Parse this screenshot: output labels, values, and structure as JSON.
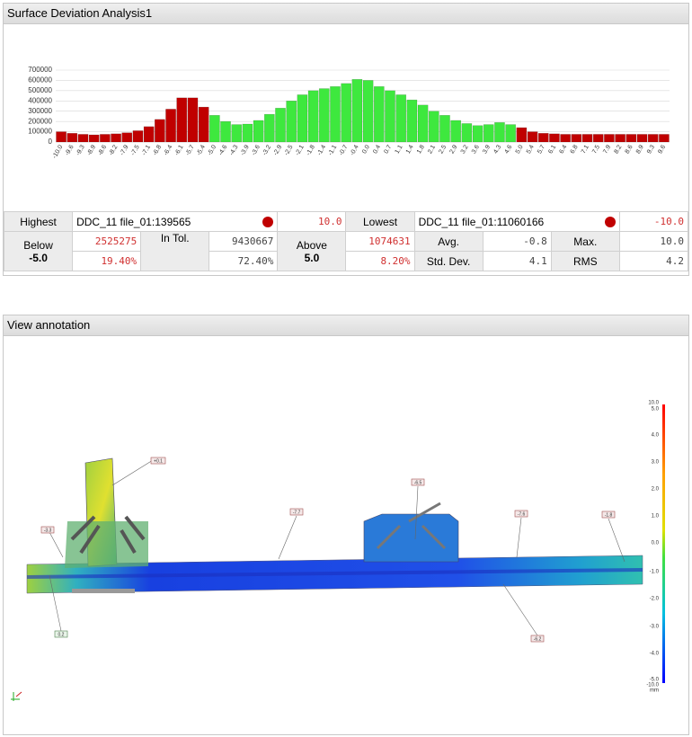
{
  "panel_top": {
    "title": "Surface Deviation Analysis1"
  },
  "panel_bottom": {
    "title": "View annotation"
  },
  "chart_data": {
    "type": "bar",
    "categories": [
      "-10.0",
      "-9.6",
      "-9.3",
      "-8.9",
      "-8.6",
      "-8.2",
      "-7.9",
      "-7.5",
      "-7.1",
      "-6.8",
      "-6.4",
      "-6.1",
      "-5.7",
      "-5.4",
      "-5.0",
      "-4.6",
      "-4.3",
      "-3.9",
      "-3.6",
      "-3.2",
      "-2.9",
      "-2.5",
      "-2.1",
      "-1.8",
      "-1.4",
      "-1.1",
      "-0.7",
      "-0.4",
      "0.0",
      "0.4",
      "0.7",
      "1.1",
      "1.4",
      "1.8",
      "2.1",
      "2.5",
      "2.9",
      "3.2",
      "3.6",
      "3.9",
      "4.3",
      "4.6",
      "5.0",
      "5.4",
      "5.7",
      "6.1",
      "6.4",
      "6.8",
      "7.1",
      "7.5",
      "7.9",
      "8.2",
      "8.6",
      "8.9",
      "9.3",
      "9.6"
    ],
    "values": [
      100000,
      85000,
      75000,
      70000,
      75000,
      80000,
      90000,
      110000,
      150000,
      220000,
      320000,
      430000,
      430000,
      340000,
      260000,
      200000,
      170000,
      175000,
      210000,
      270000,
      330000,
      400000,
      460000,
      500000,
      520000,
      540000,
      570000,
      610000,
      600000,
      540000,
      500000,
      460000,
      410000,
      360000,
      300000,
      260000,
      210000,
      180000,
      160000,
      170000,
      190000,
      170000,
      140000,
      100000,
      85000,
      80000,
      75000,
      75000,
      75000,
      75000,
      75000,
      75000,
      75000,
      75000,
      75000,
      75000
    ],
    "colors": [
      "#c00000",
      "#c00000",
      "#c00000",
      "#c00000",
      "#c00000",
      "#c00000",
      "#c00000",
      "#c00000",
      "#c00000",
      "#c00000",
      "#c00000",
      "#c00000",
      "#c00000",
      "#c00000",
      "#3ee83e",
      "#3ee83e",
      "#3ee83e",
      "#3ee83e",
      "#3ee83e",
      "#3ee83e",
      "#3ee83e",
      "#3ee83e",
      "#3ee83e",
      "#3ee83e",
      "#3ee83e",
      "#3ee83e",
      "#3ee83e",
      "#3ee83e",
      "#3ee83e",
      "#3ee83e",
      "#3ee83e",
      "#3ee83e",
      "#3ee83e",
      "#3ee83e",
      "#3ee83e",
      "#3ee83e",
      "#3ee83e",
      "#3ee83e",
      "#3ee83e",
      "#3ee83e",
      "#3ee83e",
      "#3ee83e",
      "#c00000",
      "#c00000",
      "#c00000",
      "#c00000",
      "#c00000",
      "#c00000",
      "#c00000",
      "#c00000",
      "#c00000",
      "#c00000",
      "#c00000",
      "#c00000",
      "#c00000",
      "#c00000"
    ],
    "ylim": [
      0,
      700000
    ],
    "yticks": [
      0,
      100000,
      200000,
      300000,
      400000,
      500000,
      600000,
      700000
    ],
    "grid": true
  },
  "table": {
    "highest": {
      "label": "Highest",
      "name": "DDC_11 file_01:139565",
      "value": "10.0"
    },
    "lowest": {
      "label": "Lowest",
      "name": "DDC_11 file_01:11060166",
      "value": "-10.0"
    },
    "below": {
      "label": "Below",
      "limit": "-5.0",
      "count": "2525275",
      "percent": "19.40%"
    },
    "in_tol": {
      "label": "In Tol.",
      "count": "9430667",
      "percent": "72.40%"
    },
    "above": {
      "label": "Above",
      "limit": "5.0",
      "count": "1074631",
      "percent": "8.20%"
    },
    "avg": {
      "label": "Avg.",
      "value": "-0.8"
    },
    "max": {
      "label": "Max.",
      "value": "10.0"
    },
    "std": {
      "label": "Std. Dev.",
      "value": "4.1"
    },
    "rms": {
      "label": "RMS",
      "value": "4.2"
    }
  },
  "color_scale": {
    "labels": [
      "10.0",
      "5.0",
      "4.0",
      "3.0",
      "2.0",
      "1.0",
      "0.0",
      "-1.0",
      "-2.0",
      "-3.0",
      "-4.0",
      "-5.0",
      "-10.0"
    ],
    "unit": "mm"
  },
  "annotations": [
    "+0.1",
    "-3.3",
    "-7.7",
    "-6.5",
    "-7.6",
    "-1.8",
    "0.2",
    "-6.2"
  ]
}
